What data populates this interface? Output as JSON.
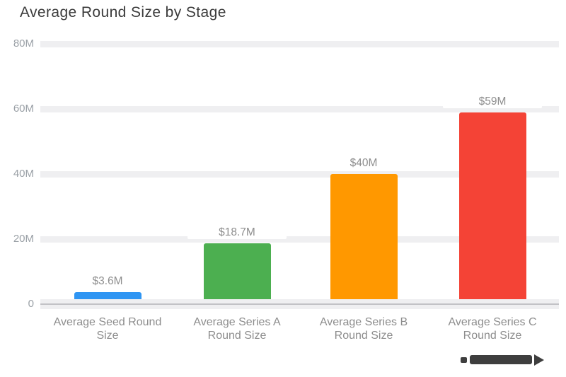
{
  "title": "Average Round Size by Stage",
  "colors": {
    "background": "#ffffff",
    "gridband": "#efeff1",
    "baseline_band": "#efeff1",
    "zero_line": "#c2c2c6",
    "title_text": "#3b3b3b",
    "ytick_text": "#9aa0a6",
    "xlabel_text": "#8d8d8d",
    "annotation_text": "#8e8e8e",
    "watermark": "#3e3e3e"
  },
  "watermark": {
    "icon": "wordmark-logo"
  },
  "chart_data": {
    "type": "bar",
    "title": "Average Round Size by Stage",
    "categories": [
      "Average Seed Round Size",
      "Average Series A Round Size",
      "Average Series B Round Size",
      "Average Series C Round Size"
    ],
    "category_label_lines": [
      [
        "Average Seed Round",
        "Size"
      ],
      [
        "Average Series A",
        "Round Size"
      ],
      [
        "Average Series B",
        "Round Size"
      ],
      [
        "Average Series C",
        "Round Size"
      ]
    ],
    "values": [
      3.6,
      18.7,
      40,
      59
    ],
    "value_labels": [
      "$3.6M",
      "$18.7M",
      "$40M",
      "$59M"
    ],
    "bar_colors": [
      "#2e95f3",
      "#4caf50",
      "#ff9800",
      "#f44336"
    ],
    "xlabel": "",
    "ylabel": "",
    "ylim": [
      0,
      80
    ],
    "ytick_values": [
      0,
      20,
      40,
      60,
      80
    ],
    "ytick_labels": [
      "0",
      "20M",
      "40M",
      "60M",
      "80M"
    ],
    "grid": true,
    "legend": "none",
    "units": "USD millions"
  }
}
